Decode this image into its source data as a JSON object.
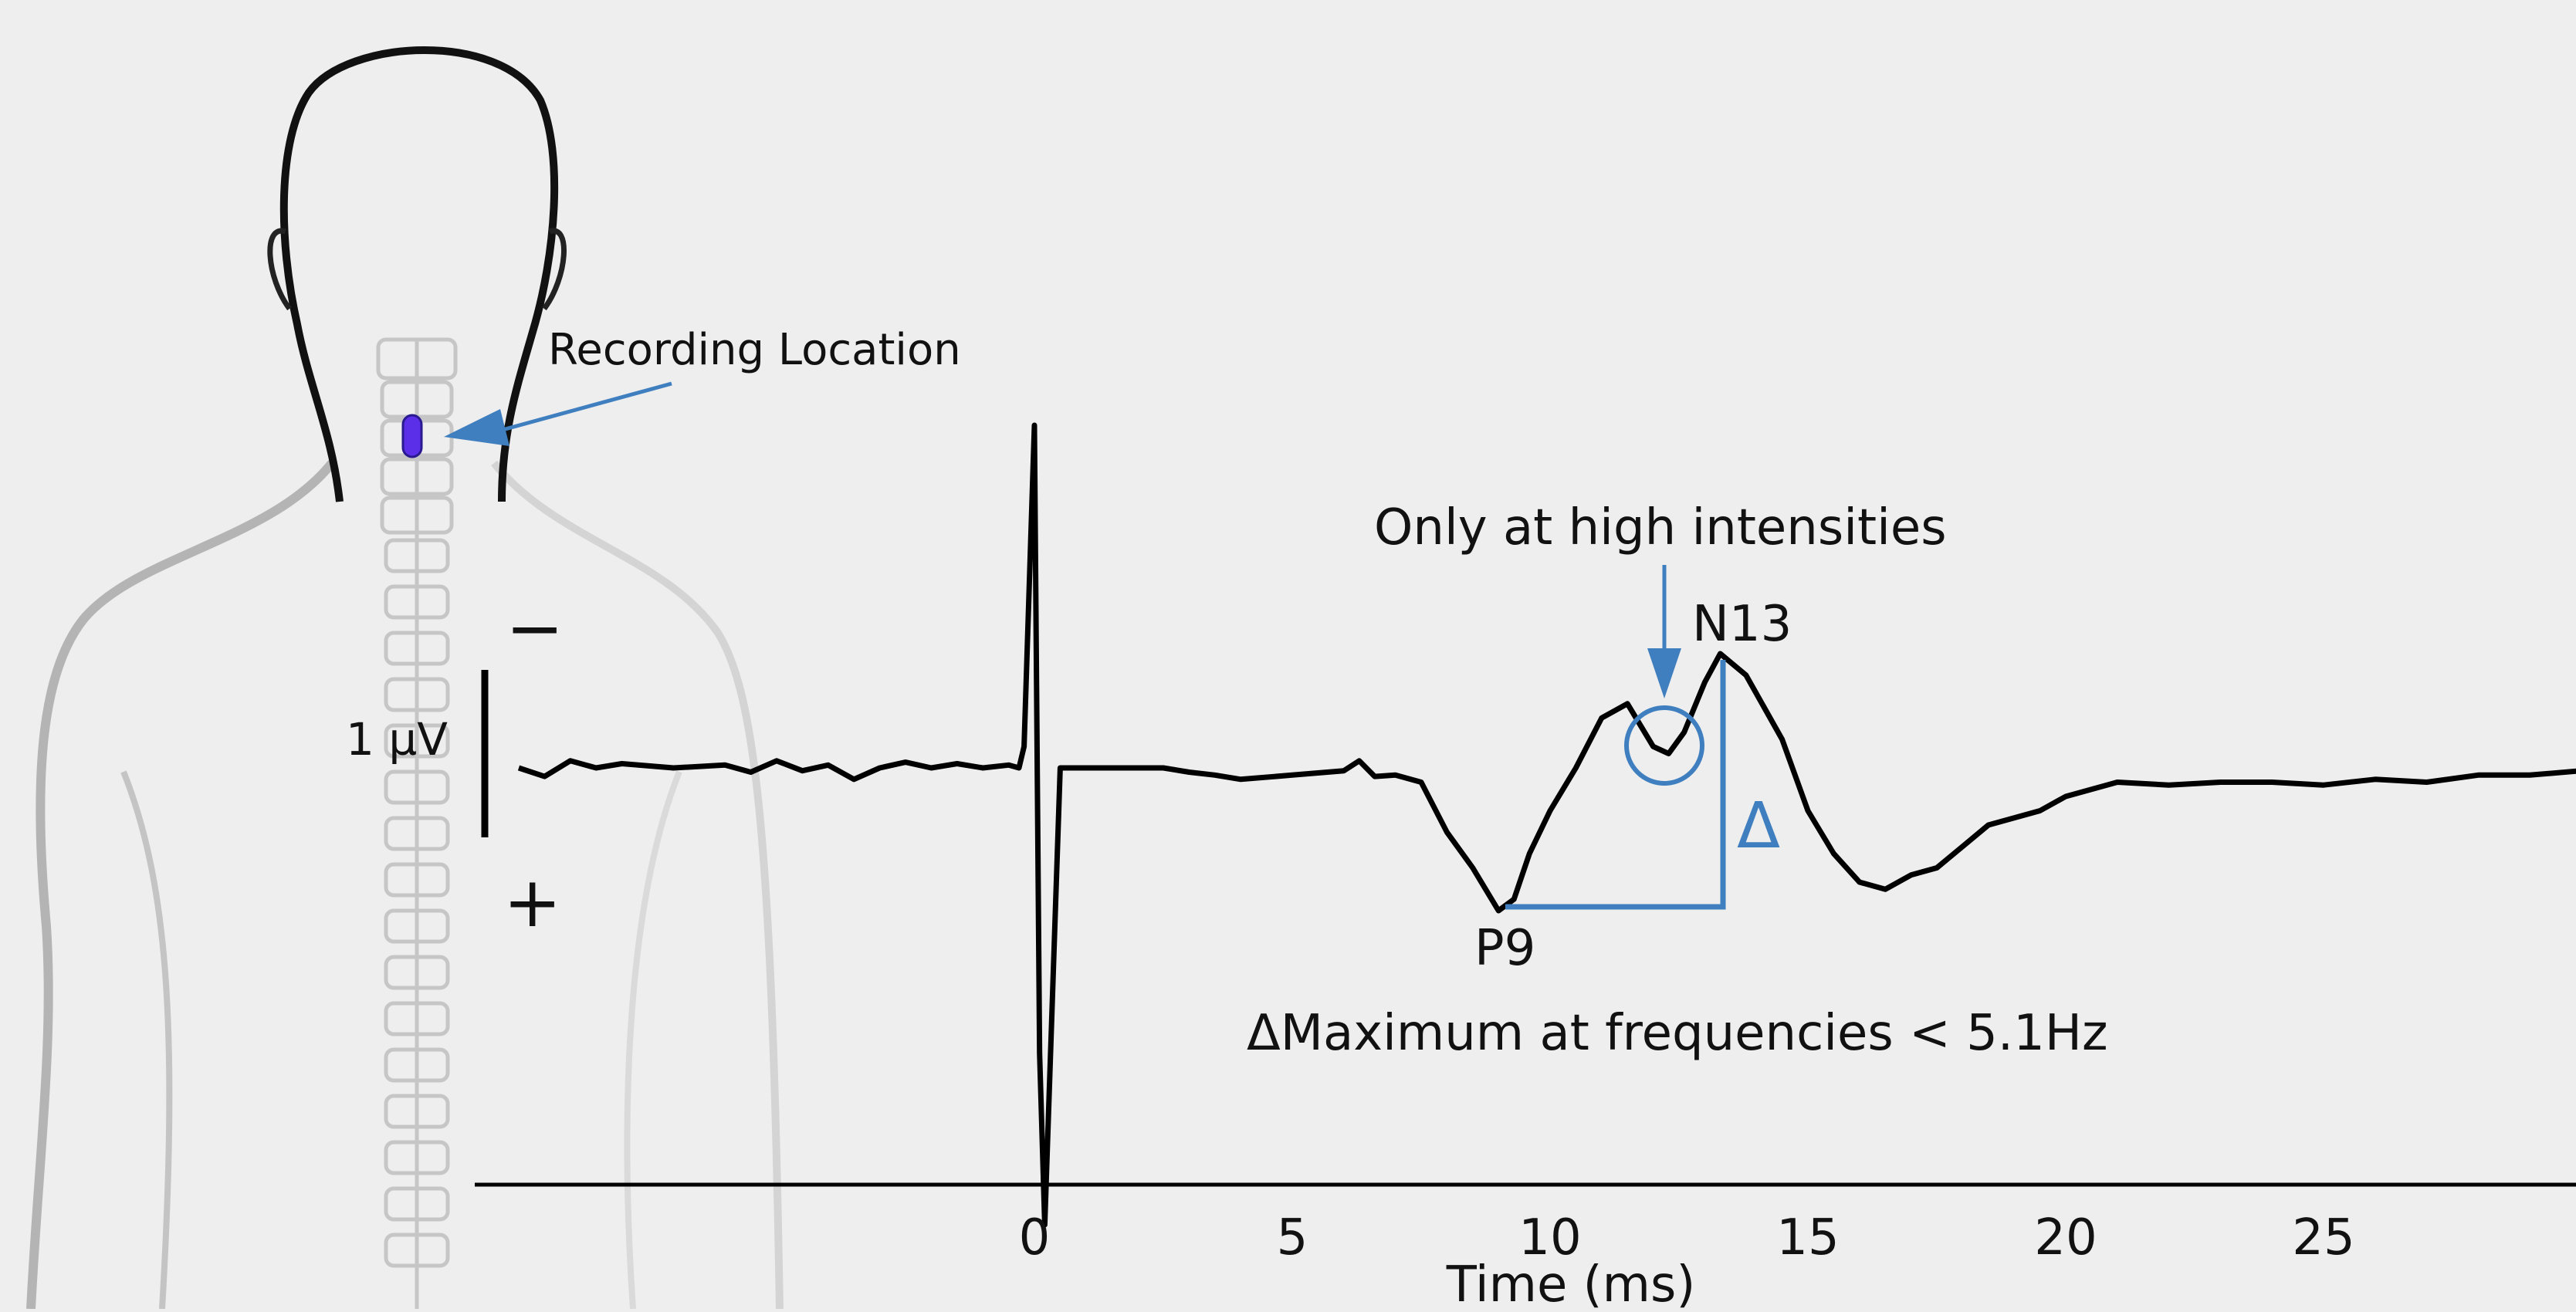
{
  "labels": {
    "recording_location": "Recording Location",
    "only_high": "Only at high intensities",
    "n13": "N13",
    "p9": "P9",
    "delta": "Δ",
    "delta_note": "ΔMaximum at frequencies < 5.1Hz",
    "scale": "1 µV",
    "minus": "−",
    "plus": "+"
  },
  "axis": {
    "xlabel": "Time (ms)",
    "ticks": [
      0,
      5,
      10,
      15,
      20,
      25
    ]
  },
  "colors": {
    "background": "#eeeeee",
    "trace": "#000000",
    "annotation": "#3f7fbf",
    "electrode": "#5b2ee8",
    "figure": "#c8c8c8"
  },
  "trace_points": [
    [
      -10.0,
      0.0
    ],
    [
      -9.5,
      -0.06
    ],
    [
      -9.0,
      0.05
    ],
    [
      -8.5,
      0.0
    ],
    [
      -8.0,
      0.03
    ],
    [
      -7.0,
      0.0
    ],
    [
      -6.0,
      0.02
    ],
    [
      -5.5,
      -0.03
    ],
    [
      -5.0,
      0.05
    ],
    [
      -4.5,
      -0.02
    ],
    [
      -4.0,
      0.02
    ],
    [
      -3.5,
      -0.08
    ],
    [
      -3.0,
      0.0
    ],
    [
      -2.5,
      0.04
    ],
    [
      -2.0,
      0.0
    ],
    [
      -1.5,
      0.03
    ],
    [
      -1.0,
      0.0
    ],
    [
      -0.5,
      0.02
    ],
    [
      -0.3,
      0.0
    ],
    [
      -0.2,
      0.15
    ],
    [
      0.0,
      2.4
    ],
    [
      0.1,
      -2.0
    ],
    [
      0.2,
      -3.2
    ],
    [
      0.5,
      0.0
    ],
    [
      1.5,
      0.0
    ],
    [
      2.5,
      0.0
    ],
    [
      3.0,
      -0.03
    ],
    [
      3.5,
      -0.05
    ],
    [
      4.0,
      -0.08
    ],
    [
      5.0,
      -0.05
    ],
    [
      6.0,
      -0.02
    ],
    [
      6.3,
      0.05
    ],
    [
      6.6,
      -0.06
    ],
    [
      7.0,
      -0.05
    ],
    [
      7.5,
      -0.1
    ],
    [
      8.0,
      -0.45
    ],
    [
      8.5,
      -0.7
    ],
    [
      9.0,
      -1.0
    ],
    [
      9.3,
      -0.92
    ],
    [
      9.6,
      -0.6
    ],
    [
      10.0,
      -0.3
    ],
    [
      10.5,
      0.0
    ],
    [
      11.0,
      0.35
    ],
    [
      11.5,
      0.45
    ],
    [
      12.0,
      0.15
    ],
    [
      12.3,
      0.1
    ],
    [
      12.6,
      0.25
    ],
    [
      13.0,
      0.6
    ],
    [
      13.3,
      0.8
    ],
    [
      13.8,
      0.65
    ],
    [
      14.5,
      0.2
    ],
    [
      15.0,
      -0.3
    ],
    [
      15.5,
      -0.6
    ],
    [
      16.0,
      -0.8
    ],
    [
      16.5,
      -0.85
    ],
    [
      17.0,
      -0.75
    ],
    [
      17.5,
      -0.7
    ],
    [
      18.0,
      -0.55
    ],
    [
      18.5,
      -0.4
    ],
    [
      19.0,
      -0.35
    ],
    [
      19.5,
      -0.3
    ],
    [
      20.0,
      -0.2
    ],
    [
      20.5,
      -0.15
    ],
    [
      21.0,
      -0.1
    ],
    [
      22.0,
      -0.12
    ],
    [
      23.0,
      -0.1
    ],
    [
      24.0,
      -0.1
    ],
    [
      25.0,
      -0.12
    ],
    [
      26.0,
      -0.08
    ],
    [
      27.0,
      -0.1
    ],
    [
      28.0,
      -0.05
    ],
    [
      29.0,
      -0.05
    ],
    [
      30.0,
      -0.02
    ]
  ]
}
